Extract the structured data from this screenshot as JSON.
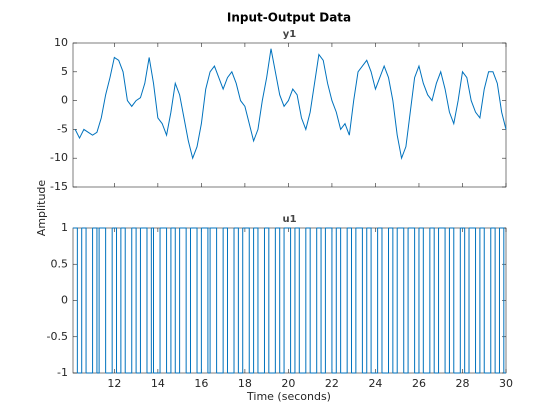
{
  "title": "Input-Output Data",
  "xlabel": "Time (seconds)",
  "ylabel": "Amplitude",
  "chart_data": [
    {
      "type": "line",
      "title": "y1",
      "color": "#0072bd",
      "xlim": [
        10.1,
        30
      ],
      "xticks": [
        12,
        14,
        16,
        18,
        20,
        22,
        24,
        26,
        28,
        30
      ],
      "ylim": [
        -15,
        10
      ],
      "yticks": [
        -15,
        -10,
        -5,
        0,
        5,
        10
      ],
      "series": [
        {
          "name": "y1",
          "color": "#0072bd",
          "x": [
            10.2,
            10.4,
            10.6,
            10.8,
            11.0,
            11.2,
            11.4,
            11.6,
            11.8,
            12.0,
            12.2,
            12.4,
            12.6,
            12.8,
            13.0,
            13.2,
            13.4,
            13.6,
            13.8,
            14.0,
            14.2,
            14.4,
            14.6,
            14.8,
            15.0,
            15.2,
            15.4,
            15.6,
            15.8,
            16.0,
            16.2,
            16.4,
            16.6,
            16.8,
            17.0,
            17.2,
            17.4,
            17.6,
            17.8,
            18.0,
            18.2,
            18.4,
            18.6,
            18.8,
            19.0,
            19.2,
            19.4,
            19.6,
            19.8,
            20.0,
            20.2,
            20.4,
            20.6,
            20.8,
            21.0,
            21.2,
            21.4,
            21.6,
            21.8,
            22.0,
            22.2,
            22.4,
            22.6,
            22.8,
            23.0,
            23.2,
            23.4,
            23.6,
            23.8,
            24.0,
            24.2,
            24.4,
            24.6,
            24.8,
            25.0,
            25.2,
            25.4,
            25.6,
            25.8,
            26.0,
            26.2,
            26.4,
            26.6,
            26.8,
            27.0,
            27.2,
            27.4,
            27.6,
            27.8,
            28.0,
            28.2,
            28.4,
            28.6,
            28.8,
            29.0,
            29.2,
            29.4,
            29.6,
            29.8,
            30.0
          ],
          "values": [
            -5,
            -6.5,
            -5,
            -5.5,
            -6,
            -5.5,
            -3,
            1,
            4,
            7.5,
            7,
            5,
            0,
            -1,
            0,
            0.5,
            3,
            7.5,
            3,
            -3,
            -4,
            -6,
            -2,
            3,
            1,
            -3,
            -7,
            -10,
            -8,
            -4,
            2,
            5,
            6,
            4,
            2,
            4,
            5,
            3,
            0,
            -1,
            -4,
            -7,
            -5,
            0,
            4,
            9,
            5,
            1,
            -1,
            0,
            2,
            1,
            -3,
            -5,
            -2,
            3,
            8,
            7,
            3,
            0,
            -2,
            -5,
            -4,
            -6,
            0,
            5,
            6,
            7,
            5,
            2,
            4,
            6,
            4,
            0,
            -6,
            -10,
            -8,
            -2,
            4,
            6,
            3,
            1,
            0,
            3,
            5,
            2,
            -2,
            -4,
            0,
            5,
            4,
            0,
            -2,
            -3,
            2,
            5,
            5,
            3,
            -2,
            -5
          ]
        }
      ]
    },
    {
      "type": "stairs",
      "title": "u1",
      "color": "#0072bd",
      "xlim": [
        10.1,
        30
      ],
      "xticks": [
        12,
        14,
        16,
        18,
        20,
        22,
        24,
        26,
        28,
        30
      ],
      "ylim": [
        -1,
        1
      ],
      "yticks": [
        -1,
        -0.5,
        0,
        0.5,
        1
      ],
      "series": [
        {
          "name": "u1",
          "color": "#0072bd",
          "x": [
            10.1,
            10.3,
            10.5,
            10.7,
            11.0,
            11.2,
            11.3,
            11.6,
            11.9,
            12.1,
            12.3,
            12.5,
            12.8,
            13.0,
            13.2,
            13.5,
            13.7,
            13.8,
            14.1,
            14.4,
            14.6,
            14.8,
            15.0,
            15.3,
            15.5,
            15.8,
            16.0,
            16.3,
            16.4,
            16.7,
            17.0,
            17.2,
            17.5,
            17.7,
            17.9,
            18.2,
            18.4,
            18.6,
            18.9,
            19.1,
            19.4,
            19.6,
            19.8,
            20.1,
            20.3,
            20.5,
            20.8,
            21.0,
            21.3,
            21.5,
            21.7,
            22.0,
            22.2,
            22.4,
            22.7,
            22.9,
            23.1,
            23.4,
            23.6,
            23.8,
            24.1,
            24.3,
            24.6,
            24.8,
            25.0,
            25.3,
            25.5,
            25.8,
            26.0,
            26.2,
            26.5,
            26.7,
            26.9,
            27.2,
            27.4,
            27.6,
            27.9,
            28.1,
            28.3,
            28.6,
            28.8,
            29.0,
            29.3,
            29.5,
            29.7,
            29.9
          ],
          "values": [
            1,
            -1,
            1,
            -1,
            1,
            -1,
            1,
            -1,
            1,
            -1,
            1,
            -1,
            1,
            -1,
            1,
            -1,
            1,
            -1,
            1,
            -1,
            1,
            -1,
            1,
            -1,
            1,
            -1,
            1,
            -1,
            1,
            -1,
            1,
            -1,
            1,
            -1,
            1,
            -1,
            1,
            -1,
            1,
            -1,
            1,
            -1,
            1,
            -1,
            1,
            -1,
            1,
            -1,
            1,
            -1,
            1,
            -1,
            1,
            -1,
            1,
            -1,
            1,
            -1,
            1,
            -1,
            1,
            -1,
            1,
            -1,
            1,
            -1,
            1,
            -1,
            1,
            -1,
            1,
            -1,
            1,
            -1,
            1,
            -1,
            1,
            -1,
            1,
            -1,
            1,
            -1,
            1,
            -1,
            1,
            -1
          ]
        }
      ]
    }
  ]
}
